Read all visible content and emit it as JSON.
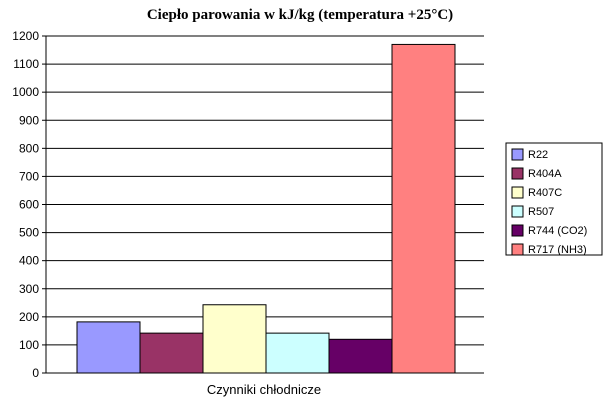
{
  "chart_data": {
    "type": "bar",
    "title": "Ciepło parowania w kJ/kg (temperatura +25°C)",
    "xlabel": "Czynniki chłodnicze",
    "ylabel": "",
    "ylim": [
      0,
      1200
    ],
    "ytick_step": 100,
    "yticks": [
      "0",
      "100",
      "200",
      "300",
      "400",
      "500",
      "600",
      "700",
      "800",
      "900",
      "1000",
      "1100",
      "1200"
    ],
    "grid": true,
    "legend_position": "right",
    "series": [
      {
        "name": "R22",
        "value": 182,
        "color": "#9999FF"
      },
      {
        "name": "R404A",
        "value": 142,
        "color": "#993366"
      },
      {
        "name": "R407C",
        "value": 243,
        "color": "#FFFFCC"
      },
      {
        "name": "R507",
        "value": 142,
        "color": "#CCFFFF"
      },
      {
        "name": "R744 (CO2)",
        "value": 120,
        "color": "#660066"
      },
      {
        "name": "R717 (NH3)",
        "value": 1170,
        "color": "#FF8080"
      }
    ]
  }
}
